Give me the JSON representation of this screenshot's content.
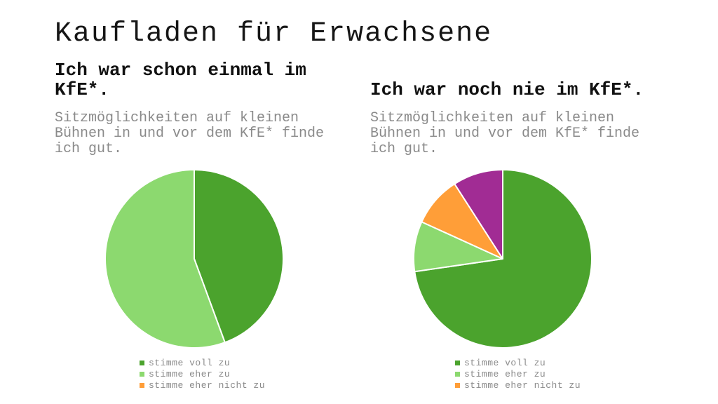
{
  "slide": {
    "title": "Kaufladen für Erwachsene"
  },
  "colors": {
    "slide_bg": "#ffffff",
    "title_text": "#161616",
    "heading_text": "#111111",
    "subtitle_text": "#8a8a8a",
    "legend_text": "#8a8a8a",
    "slice_border": "#ffffff"
  },
  "chart_data": [
    {
      "type": "pie",
      "title": "Ich war schon einmal im KfE*.",
      "subtitle": "Sitzmöglichkeiten auf kleinen Bühnen in und vor dem KfE* finde ich gut.",
      "legend_position": "bottom",
      "start_angle_deg": 0,
      "direction": "clockwise",
      "slices": [
        {
          "label": "stimme voll zu",
          "value": 44.4,
          "color": "#4BA32D",
          "in_legend": true
        },
        {
          "label": "stimme eher zu",
          "value": 55.6,
          "color": "#8CD96F",
          "in_legend": true
        },
        {
          "label": "stimme eher nicht zu",
          "value": 0,
          "color": "#FF9E38",
          "in_legend": true
        }
      ]
    },
    {
      "type": "pie",
      "title": "Ich war noch nie im KfE*.",
      "subtitle": "Sitzmöglichkeiten auf kleinen Bühnen in und vor dem KfE* finde ich gut.",
      "legend_position": "bottom",
      "start_angle_deg": 0,
      "direction": "clockwise",
      "slices": [
        {
          "label": "stimme voll zu",
          "value": 72.7,
          "color": "#4BA32D",
          "in_legend": true
        },
        {
          "label": "stimme eher zu",
          "value": 9.1,
          "color": "#8CD96F",
          "in_legend": true
        },
        {
          "label": "stimme eher nicht zu",
          "value": 9.1,
          "color": "#FF9E38",
          "in_legend": true
        },
        {
          "label": "",
          "value": 9.1,
          "color": "#A12C94",
          "in_legend": false
        }
      ]
    }
  ]
}
